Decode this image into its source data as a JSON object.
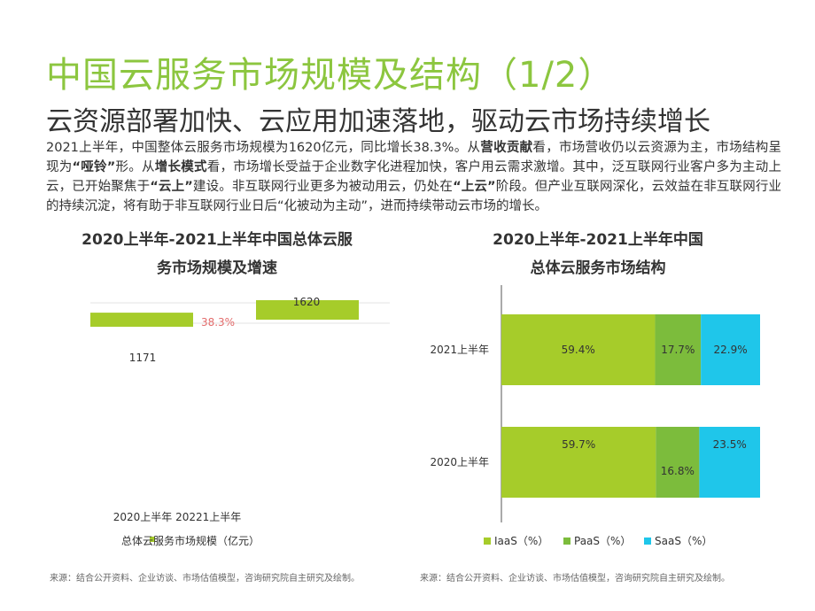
{
  "header": {
    "title": "中国云服务市场规模及结构（1/2）",
    "subtitle": "云资源部署加快、云应用加速落地，驱动云市场持续增长"
  },
  "body": {
    "p1": "2021上半年，中国整体云服务市场规模为1620亿元，同比增长38.3%。从",
    "b1": "营收贡献",
    "p2": "看，市场营收仍以云资源为主，市场结构呈现为",
    "b2": "“哑铃”",
    "p3": "形。从",
    "b3": "增长模式",
    "p4": "看，市场增长受益于企业数字化进程加快，客户用云需求激增。其中，泛互联网行业客户多为主动上云，已开始聚焦于",
    "b4": "“云上”",
    "p5": "建设。非互联网行业更多为被动用云，仍处在",
    "b5": "“上云”",
    "p6": "阶段。但产业互联网深化，云效益在非互联网行业的持续沉淀，将有助于非互联网行业日后“化被动为主动”，进而持续带动云市场的增长。"
  },
  "colors": {
    "accent": "#8cc63f",
    "iaas": "#a6cc2a",
    "paas": "#7cbc3c",
    "saas": "#1fc6ea",
    "growth": "#e36c6c"
  },
  "chart_data": [
    {
      "type": "bar",
      "title": "2020上半年-2021上半年中国总体云服务市场规模及增速",
      "title_line1": "2020上半年-2021上半年中国总体云服",
      "title_line2": "务市场规模及增速",
      "categories": [
        "2020上半年",
        "20221上半年"
      ],
      "axis_label_text": "2020上半年 20221上半年",
      "series": [
        {
          "name": "总体云服务市场规模（亿元）",
          "values": [
            1171,
            1620
          ]
        }
      ],
      "growth_rate": "38.3%",
      "legend": "总体云服务市场规模（亿元）",
      "value_labels": [
        "1171",
        "1620"
      ]
    },
    {
      "type": "bar",
      "orientation": "horizontal-stacked",
      "title": "2020上半年-2021上半年中国总体云服务市场结构",
      "title_line1": "2020上半年-2021上半年中国",
      "title_line2": "总体云服务市场结构",
      "categories": [
        "2021上半年",
        "2020上半年"
      ],
      "series": [
        {
          "name": "IaaS（%）",
          "values": [
            59.4,
            59.7
          ],
          "labels": [
            "59.4%",
            "59.7%"
          ]
        },
        {
          "name": "PaaS（%）",
          "values": [
            17.7,
            16.8
          ],
          "labels": [
            "17.7%",
            "16.8%"
          ]
        },
        {
          "name": "SaaS（%）",
          "values": [
            22.9,
            23.5
          ],
          "labels": [
            "22.9%",
            "23.5%"
          ]
        }
      ],
      "legend_placement": "bottom"
    }
  ],
  "sources": {
    "left": "来源：结合公开资料、企业访谈、市场估值模型，咨询研究院自主研究及绘制。",
    "right": "来源：结合公开资料、企业访谈、市场估值模型，咨询研究院自主研究及绘制。"
  }
}
